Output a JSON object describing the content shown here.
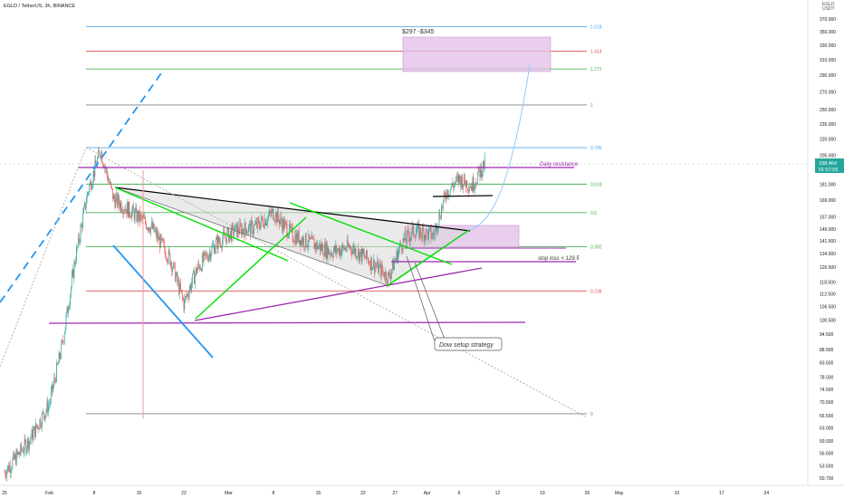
{
  "header": {
    "symbol": "EGLD / TetherUS, 3h, BINANCE"
  },
  "price_axis": {
    "currency_line1": "EGLD",
    "currency_line2": "USDT",
    "ticks": [
      370.0,
      350.0,
      330.0,
      310.0,
      290.0,
      270.0,
      250.0,
      235.0,
      220.0,
      205.0,
      193.0,
      181.0,
      169.0,
      157.0,
      149.0,
      141.5,
      134.0,
      126.5,
      118.5,
      112.5,
      106.5,
      100.5,
      94.5,
      88.5,
      83.5,
      78.5,
      74.5,
      70.5,
      66.5,
      63.0,
      59.5,
      56.5,
      53.5,
      50.7
    ],
    "tick_labels": [
      "370.000",
      "350.000",
      "330.000",
      "310.000",
      "290.000",
      "270.000",
      "250.000",
      "235.000",
      "220.000",
      "205.000",
      "193.000",
      "181.000",
      "169.000",
      "157.000",
      "149.000",
      "141.500",
      "134.000",
      "126.500",
      "118.500",
      "112.500",
      "106.500",
      "100.500",
      "94.500",
      "88.500",
      "83.500",
      "78.500",
      "74.500",
      "70.500",
      "66.500",
      "63.000",
      "59.500",
      "56.500",
      "53.500",
      "50.700"
    ],
    "current_price": "198.464",
    "countdown": "01:57:55"
  },
  "time_axis": {
    "labels": [
      "25",
      "Feb",
      "8",
      "15",
      "22",
      "Mar",
      "8",
      "15",
      "22",
      "27",
      "Apr",
      "6",
      "12",
      "19",
      "26",
      "May",
      "10",
      "17",
      "24"
    ]
  },
  "colors": {
    "fib_1618": "#5aa9e6",
    "fib_1414": "#e05050",
    "fib_1272": "#4caf50",
    "fib_1": "#808080",
    "fib_0786": "#5aa9e6",
    "fib_0618": "#4caf50",
    "fib_05": "#4caf50",
    "fib_0382": "#4caf50",
    "fib_0236": "#e05050",
    "fib_0": "#808080",
    "resistance": "#9c27b0",
    "target_zone": "#e1bee7",
    "candle_up": "#26a69a",
    "candle_down": "#ef5350",
    "trend_green": "#00e000",
    "trend_blue": "#2196f3",
    "projection": "#90caf9",
    "price_label_bg": "#26a69a"
  },
  "chart_data": {
    "type": "candlestick",
    "symbol": "EGLD / TetherUS",
    "interval": "3h",
    "exchange": "BINANCE",
    "y_scale": "log",
    "ylim": [
      50.7,
      370
    ],
    "x_range": [
      "Jan 25",
      "May 24"
    ],
    "grid": false,
    "current_price": 198.464,
    "fibonacci_levels": [
      {
        "label": "1.618",
        "price": 358
      },
      {
        "label": "1.414",
        "price": 322
      },
      {
        "label": "1.272",
        "price": 298
      },
      {
        "label": "1",
        "price": 255
      },
      {
        "label": "0.786",
        "price": 212
      },
      {
        "label": "0.618",
        "price": 181
      },
      {
        "label": "0.5",
        "price": 160
      },
      {
        "label": "0.382",
        "price": 138
      },
      {
        "label": "0.236",
        "price": 114
      },
      {
        "label": "0",
        "price": 67
      }
    ],
    "annotations": [
      {
        "text": "$297 -$345",
        "price_low": 297,
        "price_high": 345,
        "from": "Apr 1",
        "to": "Apr 18"
      },
      {
        "text": "Daily resistance",
        "price": 200
      },
      {
        "text": "stop loss < 129.5",
        "price": 129.5
      },
      {
        "text": "Dow setup strategy"
      }
    ],
    "ohlc_approx": [
      {
        "date": "Jan 25",
        "close": 52
      },
      {
        "date": "Jan 29",
        "close": 60
      },
      {
        "date": "Feb 1",
        "close": 70
      },
      {
        "date": "Feb 3",
        "close": 90
      },
      {
        "date": "Feb 5",
        "close": 130
      },
      {
        "date": "Feb 7",
        "close": 175
      },
      {
        "date": "Feb 9",
        "close": 210
      },
      {
        "date": "Feb 11",
        "close": 170
      },
      {
        "date": "Feb 14",
        "close": 160
      },
      {
        "date": "Feb 17",
        "close": 150
      },
      {
        "date": "Feb 20",
        "close": 130
      },
      {
        "date": "Feb 22",
        "close": 108
      },
      {
        "date": "Feb 24",
        "close": 125
      },
      {
        "date": "Feb 27",
        "close": 140
      },
      {
        "date": "Mar 2",
        "close": 148
      },
      {
        "date": "Mar 5",
        "close": 150
      },
      {
        "date": "Mar 8",
        "close": 160
      },
      {
        "date": "Mar 11",
        "close": 145
      },
      {
        "date": "Mar 14",
        "close": 140
      },
      {
        "date": "Mar 17",
        "close": 135
      },
      {
        "date": "Mar 20",
        "close": 138
      },
      {
        "date": "Mar 23",
        "close": 130
      },
      {
        "date": "Mar 26",
        "close": 121
      },
      {
        "date": "Mar 28",
        "close": 140
      },
      {
        "date": "Mar 30",
        "close": 148
      },
      {
        "date": "Apr 2",
        "close": 145
      },
      {
        "date": "Apr 4",
        "close": 175
      },
      {
        "date": "Apr 6",
        "close": 185
      },
      {
        "date": "Apr 8",
        "close": 180
      },
      {
        "date": "Apr 10",
        "close": 198
      }
    ]
  }
}
